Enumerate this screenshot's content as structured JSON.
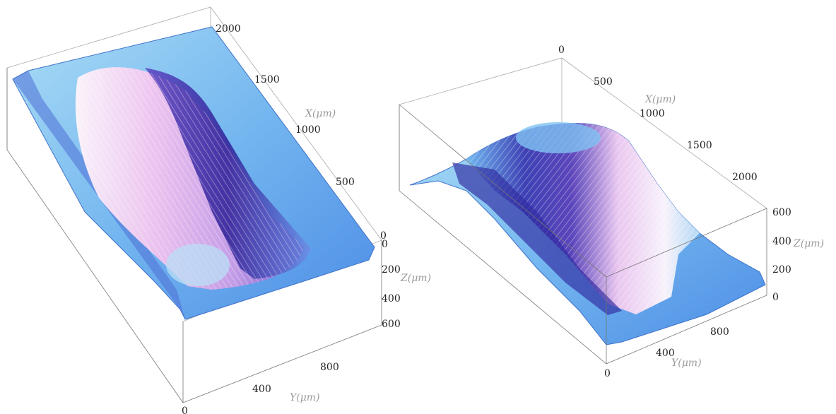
{
  "chart_data": [
    {
      "type": "surface3d",
      "title": "",
      "axes": {
        "x": {
          "label": "X(μm)",
          "ticks": [
            "500",
            "1000",
            "1500",
            "2000"
          ],
          "range": [
            0,
            2200
          ]
        },
        "y": {
          "label": "Y(μm)",
          "ticks": [
            "0",
            "400",
            "800"
          ],
          "range": [
            0,
            1000
          ]
        },
        "z": {
          "label": "Z(μm)",
          "ticks": [
            "0",
            "200",
            "400",
            "600"
          ],
          "range": [
            0,
            650
          ],
          "reversed": true
        }
      },
      "extra_tick": "0",
      "colormap": [
        "#8fd0f0",
        "#4f86e6",
        "#3a2fa8",
        "#f6c7f0",
        "#ffffff"
      ],
      "description_shape": "depression"
    },
    {
      "type": "surface3d",
      "title": "",
      "axes": {
        "x": {
          "label": "X(μm)",
          "ticks": [
            "0",
            "500",
            "1000",
            "1500",
            "2000"
          ],
          "range": [
            0,
            2200
          ]
        },
        "y": {
          "label": "Y(μm)",
          "ticks": [
            "0",
            "400",
            "800"
          ],
          "range": [
            0,
            1000
          ]
        },
        "z": {
          "label": "Z(μm)",
          "ticks": [
            "0",
            "200",
            "400",
            "600"
          ],
          "range": [
            0,
            650
          ],
          "reversed": false
        }
      },
      "colormap": [
        "#8fd0f0",
        "#4f86e6",
        "#3a2fa8",
        "#f6c7f0",
        "#ffffff"
      ],
      "description_shape": "ridge"
    }
  ]
}
